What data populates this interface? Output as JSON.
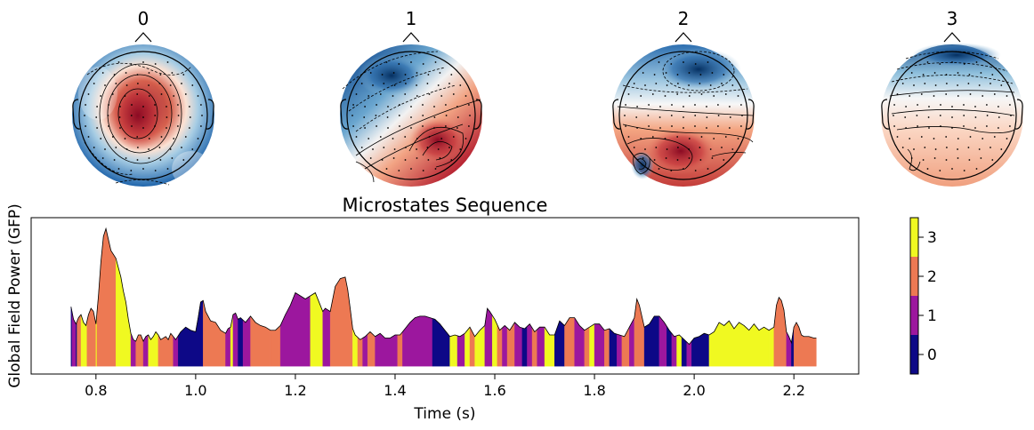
{
  "topomaps": [
    {
      "label": "0",
      "pattern": "center-positive"
    },
    {
      "label": "1",
      "pattern": "frontleft-negative-posterior-positive"
    },
    {
      "label": "2",
      "pattern": "frontal-negative-posterior-positive"
    },
    {
      "label": "3",
      "pattern": "frontal-negative-weak-positive"
    }
  ],
  "colors": {
    "state0": "#0d0887",
    "state1": "#9c179e",
    "state2": "#ed7953",
    "state3": "#f0f921",
    "neg": "#053061",
    "pos": "#67001f"
  },
  "chart_data": {
    "type": "area",
    "title": "Microstates Sequence",
    "xlabel": "Time (s)",
    "ylabel": "Global Field Power (GFP)",
    "xlim": [
      0.67,
      2.33
    ],
    "ylim": [
      0,
      1.0
    ],
    "xticks": [
      0.8,
      1.0,
      1.2,
      1.4,
      1.6,
      1.8,
      2.0,
      2.2
    ],
    "xtick_labels": [
      "0.8",
      "1.0",
      "1.2",
      "1.4",
      "1.6",
      "1.8",
      "2.0",
      "2.2"
    ],
    "colorbar": {
      "ticks": [
        0,
        1,
        2,
        3
      ],
      "tick_labels": [
        "0",
        "1",
        "2",
        "3"
      ]
    },
    "gfp_points": [
      [
        0.75,
        0.43
      ],
      [
        0.755,
        0.35
      ],
      [
        0.76,
        0.32
      ],
      [
        0.765,
        0.36
      ],
      [
        0.77,
        0.38
      ],
      [
        0.775,
        0.33
      ],
      [
        0.78,
        0.31
      ],
      [
        0.785,
        0.38
      ],
      [
        0.79,
        0.42
      ],
      [
        0.795,
        0.4
      ],
      [
        0.8,
        0.32
      ],
      [
        0.805,
        0.5
      ],
      [
        0.81,
        0.72
      ],
      [
        0.815,
        0.88
      ],
      [
        0.82,
        0.93
      ],
      [
        0.825,
        0.86
      ],
      [
        0.83,
        0.79
      ],
      [
        0.84,
        0.74
      ],
      [
        0.85,
        0.62
      ],
      [
        0.855,
        0.53
      ],
      [
        0.86,
        0.46
      ],
      [
        0.865,
        0.35
      ],
      [
        0.87,
        0.26
      ],
      [
        0.875,
        0.22
      ],
      [
        0.88,
        0.21
      ],
      [
        0.885,
        0.25
      ],
      [
        0.89,
        0.25
      ],
      [
        0.895,
        0.21
      ],
      [
        0.9,
        0.24
      ],
      [
        0.905,
        0.25
      ],
      [
        0.91,
        0.22
      ],
      [
        0.915,
        0.24
      ],
      [
        0.92,
        0.27
      ],
      [
        0.925,
        0.25
      ],
      [
        0.93,
        0.22
      ],
      [
        0.94,
        0.24
      ],
      [
        0.945,
        0.22
      ],
      [
        0.95,
        0.26
      ],
      [
        0.955,
        0.24
      ],
      [
        0.96,
        0.22
      ],
      [
        0.97,
        0.27
      ],
      [
        0.98,
        0.3
      ],
      [
        0.99,
        0.28
      ],
      [
        1.0,
        0.27
      ],
      [
        1.005,
        0.36
      ],
      [
        1.01,
        0.46
      ],
      [
        1.015,
        0.47
      ],
      [
        1.02,
        0.4
      ],
      [
        1.03,
        0.34
      ],
      [
        1.04,
        0.33
      ],
      [
        1.05,
        0.28
      ],
      [
        1.06,
        0.26
      ],
      [
        1.065,
        0.29
      ],
      [
        1.07,
        0.3
      ],
      [
        1.075,
        0.38
      ],
      [
        1.08,
        0.39
      ],
      [
        1.085,
        0.35
      ],
      [
        1.09,
        0.36
      ],
      [
        1.1,
        0.33
      ],
      [
        1.11,
        0.37
      ],
      [
        1.12,
        0.33
      ],
      [
        1.13,
        0.31
      ],
      [
        1.14,
        0.3
      ],
      [
        1.15,
        0.28
      ],
      [
        1.16,
        0.28
      ],
      [
        1.17,
        0.31
      ],
      [
        1.18,
        0.38
      ],
      [
        1.19,
        0.44
      ],
      [
        1.2,
        0.52
      ],
      [
        1.21,
        0.5
      ],
      [
        1.22,
        0.48
      ],
      [
        1.23,
        0.5
      ],
      [
        1.24,
        0.52
      ],
      [
        1.25,
        0.44
      ],
      [
        1.255,
        0.4
      ],
      [
        1.26,
        0.42
      ],
      [
        1.27,
        0.4
      ],
      [
        1.28,
        0.56
      ],
      [
        1.29,
        0.61
      ],
      [
        1.3,
        0.62
      ],
      [
        1.305,
        0.54
      ],
      [
        1.31,
        0.42
      ],
      [
        1.315,
        0.29
      ],
      [
        1.32,
        0.25
      ],
      [
        1.33,
        0.22
      ],
      [
        1.34,
        0.24
      ],
      [
        1.35,
        0.27
      ],
      [
        1.36,
        0.24
      ],
      [
        1.37,
        0.26
      ],
      [
        1.38,
        0.23
      ],
      [
        1.39,
        0.23
      ],
      [
        1.4,
        0.25
      ],
      [
        1.41,
        0.25
      ],
      [
        1.42,
        0.29
      ],
      [
        1.43,
        0.33
      ],
      [
        1.44,
        0.36
      ],
      [
        1.45,
        0.37
      ],
      [
        1.46,
        0.37
      ],
      [
        1.47,
        0.36
      ],
      [
        1.48,
        0.35
      ],
      [
        1.49,
        0.32
      ],
      [
        1.5,
        0.28
      ],
      [
        1.51,
        0.24
      ],
      [
        1.52,
        0.25
      ],
      [
        1.53,
        0.24
      ],
      [
        1.54,
        0.26
      ],
      [
        1.55,
        0.3
      ],
      [
        1.56,
        0.24
      ],
      [
        1.57,
        0.28
      ],
      [
        1.58,
        0.31
      ],
      [
        1.585,
        0.42
      ],
      [
        1.59,
        0.4
      ],
      [
        1.6,
        0.35
      ],
      [
        1.61,
        0.28
      ],
      [
        1.62,
        0.31
      ],
      [
        1.63,
        0.28
      ],
      [
        1.64,
        0.33
      ],
      [
        1.65,
        0.3
      ],
      [
        1.66,
        0.29
      ],
      [
        1.67,
        0.32
      ],
      [
        1.68,
        0.27
      ],
      [
        1.69,
        0.3
      ],
      [
        1.7,
        0.3
      ],
      [
        1.71,
        0.25
      ],
      [
        1.72,
        0.25
      ],
      [
        1.73,
        0.34
      ],
      [
        1.74,
        0.31
      ],
      [
        1.75,
        0.36
      ],
      [
        1.76,
        0.36
      ],
      [
        1.77,
        0.31
      ],
      [
        1.78,
        0.28
      ],
      [
        1.79,
        0.3
      ],
      [
        1.8,
        0.32
      ],
      [
        1.81,
        0.32
      ],
      [
        1.82,
        0.28
      ],
      [
        1.83,
        0.29
      ],
      [
        1.84,
        0.26
      ],
      [
        1.85,
        0.25
      ],
      [
        1.86,
        0.24
      ],
      [
        1.87,
        0.3
      ],
      [
        1.88,
        0.36
      ],
      [
        1.885,
        0.48
      ],
      [
        1.89,
        0.44
      ],
      [
        1.9,
        0.3
      ],
      [
        1.91,
        0.32
      ],
      [
        1.92,
        0.37
      ],
      [
        1.93,
        0.37
      ],
      [
        1.94,
        0.33
      ],
      [
        1.95,
        0.28
      ],
      [
        1.96,
        0.24
      ],
      [
        1.97,
        0.25
      ],
      [
        1.98,
        0.22
      ],
      [
        1.99,
        0.19
      ],
      [
        2.0,
        0.23
      ],
      [
        2.01,
        0.24
      ],
      [
        2.02,
        0.26
      ],
      [
        2.03,
        0.25
      ],
      [
        2.04,
        0.27
      ],
      [
        2.05,
        0.33
      ],
      [
        2.06,
        0.31
      ],
      [
        2.07,
        0.34
      ],
      [
        2.08,
        0.29
      ],
      [
        2.09,
        0.33
      ],
      [
        2.1,
        0.31
      ],
      [
        2.11,
        0.28
      ],
      [
        2.12,
        0.32
      ],
      [
        2.13,
        0.28
      ],
      [
        2.14,
        0.3
      ],
      [
        2.15,
        0.28
      ],
      [
        2.16,
        0.3
      ],
      [
        2.165,
        0.44
      ],
      [
        2.17,
        0.49
      ],
      [
        2.175,
        0.47
      ],
      [
        2.18,
        0.41
      ],
      [
        2.185,
        0.27
      ],
      [
        2.19,
        0.24
      ],
      [
        2.195,
        0.2
      ],
      [
        2.2,
        0.3
      ],
      [
        2.205,
        0.33
      ],
      [
        2.21,
        0.3
      ],
      [
        2.215,
        0.25
      ],
      [
        2.22,
        0.24
      ],
      [
        2.23,
        0.24
      ],
      [
        2.24,
        0.23
      ],
      [
        2.245,
        0.23
      ]
    ],
    "segments": [
      [
        0.75,
        0.752,
        0
      ],
      [
        0.752,
        0.76,
        1
      ],
      [
        0.76,
        0.762,
        0
      ],
      [
        0.762,
        0.77,
        2
      ],
      [
        0.77,
        0.782,
        3
      ],
      [
        0.782,
        0.8,
        2
      ],
      [
        0.8,
        0.802,
        3
      ],
      [
        0.802,
        0.84,
        2
      ],
      [
        0.84,
        0.87,
        3
      ],
      [
        0.87,
        0.88,
        1
      ],
      [
        0.88,
        0.895,
        2
      ],
      [
        0.895,
        0.905,
        1
      ],
      [
        0.905,
        0.925,
        3
      ],
      [
        0.925,
        0.955,
        2
      ],
      [
        0.955,
        0.965,
        1
      ],
      [
        0.965,
        1.015,
        0
      ],
      [
        1.015,
        1.06,
        2
      ],
      [
        1.06,
        1.07,
        1
      ],
      [
        1.07,
        1.075,
        3
      ],
      [
        1.075,
        1.085,
        1
      ],
      [
        1.085,
        1.095,
        0
      ],
      [
        1.095,
        1.11,
        1
      ],
      [
        1.11,
        1.15,
        2
      ],
      [
        1.15,
        1.17,
        2
      ],
      [
        1.17,
        1.23,
        1
      ],
      [
        1.23,
        1.255,
        3
      ],
      [
        1.255,
        1.27,
        1
      ],
      [
        1.27,
        1.315,
        2
      ],
      [
        1.315,
        1.325,
        3
      ],
      [
        1.325,
        1.335,
        2
      ],
      [
        1.335,
        1.345,
        1
      ],
      [
        1.345,
        1.36,
        2
      ],
      [
        1.36,
        1.405,
        1
      ],
      [
        1.405,
        1.415,
        2
      ],
      [
        1.415,
        1.475,
        1
      ],
      [
        1.475,
        1.51,
        0
      ],
      [
        1.51,
        1.525,
        3
      ],
      [
        1.525,
        1.54,
        1
      ],
      [
        1.54,
        1.55,
        3
      ],
      [
        1.55,
        1.56,
        2
      ],
      [
        1.56,
        1.58,
        3
      ],
      [
        1.58,
        1.595,
        1
      ],
      [
        1.595,
        1.605,
        3
      ],
      [
        1.605,
        1.615,
        2
      ],
      [
        1.615,
        1.625,
        1
      ],
      [
        1.625,
        1.64,
        2
      ],
      [
        1.64,
        1.655,
        1
      ],
      [
        1.655,
        1.665,
        0
      ],
      [
        1.665,
        1.675,
        1
      ],
      [
        1.675,
        1.685,
        2
      ],
      [
        1.685,
        1.7,
        1
      ],
      [
        1.7,
        1.72,
        3
      ],
      [
        1.72,
        1.74,
        0
      ],
      [
        1.74,
        1.76,
        2
      ],
      [
        1.76,
        1.78,
        1
      ],
      [
        1.78,
        1.79,
        2
      ],
      [
        1.79,
        1.8,
        3
      ],
      [
        1.8,
        1.82,
        1
      ],
      [
        1.82,
        1.83,
        2
      ],
      [
        1.83,
        1.845,
        0
      ],
      [
        1.845,
        1.855,
        1
      ],
      [
        1.855,
        1.87,
        2
      ],
      [
        1.87,
        1.88,
        1
      ],
      [
        1.88,
        1.9,
        2
      ],
      [
        1.9,
        1.93,
        0
      ],
      [
        1.93,
        1.945,
        1
      ],
      [
        1.945,
        1.955,
        0
      ],
      [
        1.955,
        1.965,
        1
      ],
      [
        1.965,
        1.975,
        3
      ],
      [
        1.975,
        1.985,
        0
      ],
      [
        1.985,
        1.995,
        1
      ],
      [
        1.995,
        2.03,
        0
      ],
      [
        2.03,
        2.15,
        3
      ],
      [
        2.15,
        2.16,
        3
      ],
      [
        2.16,
        2.185,
        2
      ],
      [
        2.185,
        2.195,
        1
      ],
      [
        2.195,
        2.2,
        0
      ],
      [
        2.2,
        2.245,
        2
      ]
    ]
  }
}
